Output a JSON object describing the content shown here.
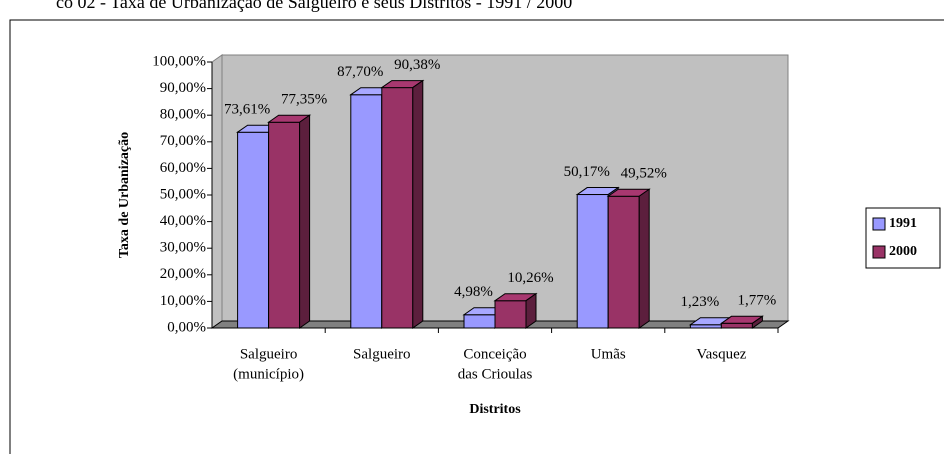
{
  "chart_data": {
    "type": "bar3d",
    "title": "co 02 - Taxa de Urbanização de Salgueiro e seus Distritos - 1991 / 2000",
    "y_label": "Taxa de Urbanização",
    "x_label": "Distritos",
    "categories": [
      [
        "Salgueiro",
        "(município)"
      ],
      [
        "Salgueiro"
      ],
      [
        "Conceição",
        "das Crioulas"
      ],
      [
        "Umãs"
      ],
      [
        "Vasquez"
      ]
    ],
    "series": [
      {
        "name": "1991",
        "color": "#9999ff",
        "values": [
          73.61,
          87.7,
          4.98,
          50.17,
          1.23
        ],
        "value_labels": [
          "73,61%",
          "87,70%",
          "4,98%",
          "50,17%",
          "1,23%"
        ]
      },
      {
        "name": "2000",
        "color": "#993366",
        "values": [
          77.35,
          90.38,
          10.26,
          49.52,
          1.77
        ],
        "value_labels": [
          "77,35%",
          "90,38%",
          "10,26%",
          "49,52%",
          "1,77%"
        ]
      }
    ],
    "ylim": [
      0,
      100
    ],
    "yticks": [
      {
        "value": 0,
        "label": "0,00%"
      },
      {
        "value": 10,
        "label": "10,00%"
      },
      {
        "value": 20,
        "label": "20,00%"
      },
      {
        "value": 30,
        "label": "30,00%"
      },
      {
        "value": 40,
        "label": "40,00%"
      },
      {
        "value": 50,
        "label": "50,00%"
      },
      {
        "value": 60,
        "label": "60,00%"
      },
      {
        "value": 70,
        "label": "70,00%"
      },
      {
        "value": 80,
        "label": "80,00%"
      },
      {
        "value": 90,
        "label": "90,00%"
      },
      {
        "value": 100,
        "label": "100,00%"
      }
    ],
    "legend": "right"
  }
}
